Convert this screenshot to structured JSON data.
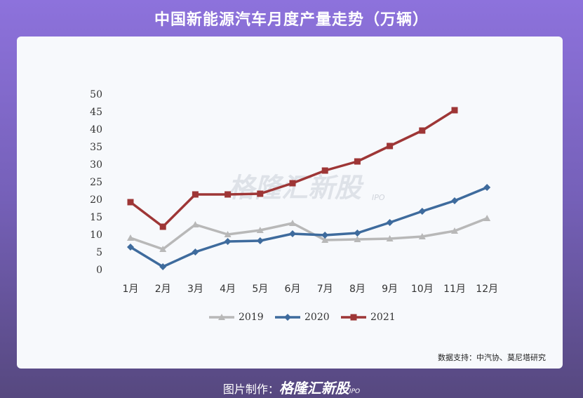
{
  "chart_data": {
    "type": "line",
    "title": "中国新能源汽车月度产量走势（万辆）",
    "categories": [
      "1月",
      "2月",
      "3月",
      "4月",
      "5月",
      "6月",
      "7月",
      "8月",
      "9月",
      "10月",
      "11月",
      "12月"
    ],
    "series": [
      {
        "name": "2019",
        "color": "#b8b8b8",
        "marker": "triangle",
        "values": [
          9.2,
          6,
          13,
          10.2,
          11.4,
          13.4,
          8.6,
          8.8,
          9,
          9.6,
          11.2,
          14.8
        ]
      },
      {
        "name": "2020",
        "color": "#3e6b9d",
        "marker": "diamond",
        "values": [
          6.6,
          1,
          5.2,
          8.2,
          8.4,
          10.4,
          10,
          10.6,
          13.6,
          16.8,
          19.8,
          23.6
        ]
      },
      {
        "name": "2021",
        "color": "#9e3636",
        "marker": "square",
        "values": [
          19.4,
          12.4,
          21.6,
          21.6,
          21.8,
          24.8,
          28.4,
          31,
          35.4,
          39.8,
          45.6,
          null
        ]
      }
    ],
    "ylim": [
      0,
      50
    ],
    "yticks": [
      0,
      5,
      10,
      15,
      20,
      25,
      30,
      35,
      40,
      45,
      50
    ],
    "grid": false,
    "legend": "bottom",
    "watermark": {
      "brand": "格隆汇新股",
      "tag": "IPO"
    },
    "source": "数据支持：中汽协、莫尼塔研究",
    "footer": {
      "prefix": "图片制作：",
      "brand": "格隆汇新股",
      "tag": "IPO"
    }
  }
}
